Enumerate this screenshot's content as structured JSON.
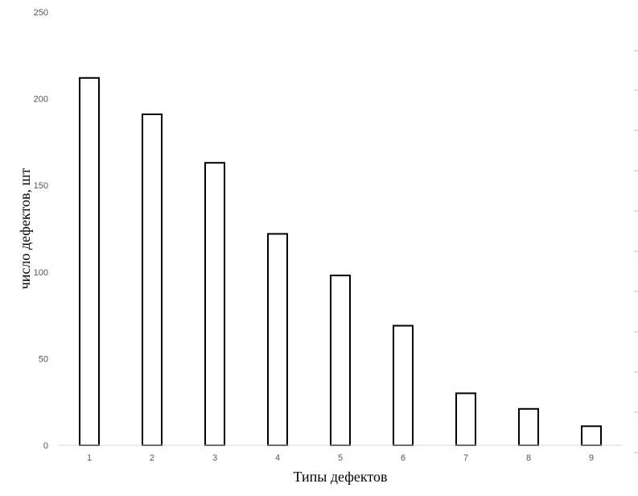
{
  "chart_data": {
    "type": "bar",
    "categories": [
      "1",
      "2",
      "3",
      "4",
      "5",
      "6",
      "7",
      "8",
      "9"
    ],
    "values": [
      212,
      191,
      163,
      122,
      98,
      69,
      30,
      21,
      11
    ],
    "xlabel": "Типы дефектов",
    "ylabel": "число дефектов, шт",
    "ylim": [
      0,
      250
    ],
    "yticks": [
      "0",
      "50",
      "100",
      "150",
      "200",
      "250"
    ],
    "grid": false,
    "legend": "none",
    "colors": {
      "bar_fill": "#ffffff",
      "bar_stroke": "#000000",
      "axis": "#d9d9d9",
      "tick_text": "#555555"
    }
  }
}
